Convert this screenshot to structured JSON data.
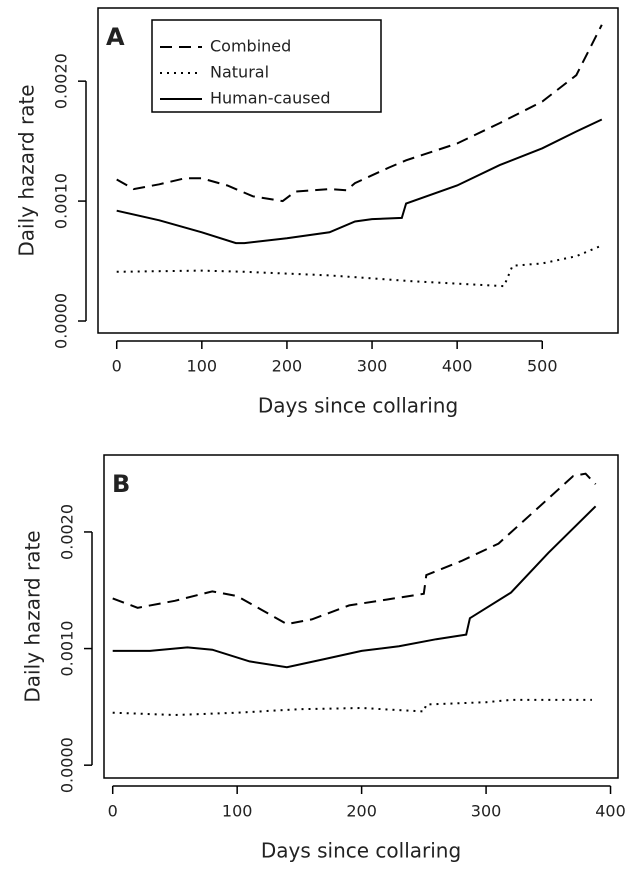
{
  "chart_data": [
    {
      "type": "line",
      "panel_label": "A",
      "x_label": "Days since collaring",
      "y_label": "Daily hazard rate",
      "xlim": [
        -22,
        589
      ],
      "ylim": [
        -0.0001,
        0.00261
      ],
      "xticks": [
        0,
        100,
        200,
        300,
        400,
        500
      ],
      "yticks": [
        {
          "value": 0,
          "label": "0.0000"
        },
        {
          "value": 0.001,
          "label": "0.0010"
        },
        {
          "value": 0.002,
          "label": "0.0020"
        }
      ],
      "legend": "top-left",
      "series": [
        {
          "name": "Combined",
          "color": "#000000",
          "style": "dashed",
          "x": [
            0,
            20,
            50,
            80,
            100,
            130,
            160,
            195,
            210,
            250,
            270,
            280,
            320,
            340,
            400,
            450,
            500,
            540,
            570
          ],
          "values": [
            0.00118,
            0.0011,
            0.00114,
            0.00119,
            0.00119,
            0.00113,
            0.00104,
            0.001,
            0.00108,
            0.0011,
            0.00109,
            0.00115,
            0.00128,
            0.00134,
            0.00148,
            0.00165,
            0.00183,
            0.00205,
            0.00247
          ]
        },
        {
          "name": "Natural",
          "color": "#000000",
          "style": "dotted",
          "x": [
            0,
            100,
            150,
            250,
            350,
            455,
            465,
            500,
            540,
            570
          ],
          "values": [
            0.00041,
            0.00042,
            0.00041,
            0.00038,
            0.00033,
            0.00029,
            0.00046,
            0.00048,
            0.00054,
            0.00063
          ]
        },
        {
          "name": "Human-caused",
          "color": "#000000",
          "style": "solid",
          "x": [
            0,
            50,
            100,
            140,
            150,
            200,
            250,
            280,
            300,
            335,
            340,
            400,
            450,
            500,
            540,
            570
          ],
          "values": [
            0.00092,
            0.00084,
            0.00074,
            0.00065,
            0.00065,
            0.00069,
            0.00074,
            0.00083,
            0.00085,
            0.00086,
            0.00098,
            0.00113,
            0.0013,
            0.00144,
            0.00158,
            0.00168
          ]
        }
      ]
    },
    {
      "type": "line",
      "panel_label": "B",
      "x_label": "Days since collaring",
      "y_label": "Daily hazard rate",
      "xlim": [
        -7,
        406
      ],
      "ylim": [
        -0.00011,
        0.00266
      ],
      "xticks": [
        0,
        100,
        200,
        300,
        400
      ],
      "yticks": [
        {
          "value": 0,
          "label": "0.0000"
        },
        {
          "value": 0.001,
          "label": "0.0010"
        },
        {
          "value": 0.002,
          "label": "0.0020"
        }
      ],
      "series": [
        {
          "color": "#000000",
          "style": "dashed",
          "x": [
            0,
            20,
            50,
            80,
            100,
            120,
            140,
            160,
            190,
            220,
            250,
            252,
            280,
            310,
            340,
            370,
            380,
            388
          ],
          "values": [
            0.00143,
            0.00135,
            0.00141,
            0.00149,
            0.00145,
            0.00133,
            0.00121,
            0.00125,
            0.00137,
            0.00142,
            0.00147,
            0.00163,
            0.00175,
            0.0019,
            0.00219,
            0.00248,
            0.0025,
            0.00241
          ]
        },
        {
          "color": "#000000",
          "style": "dotted",
          "x": [
            0,
            50,
            100,
            150,
            200,
            250,
            252,
            300,
            320,
            385
          ],
          "values": [
            0.00045,
            0.00043,
            0.00045,
            0.00048,
            0.00049,
            0.00046,
            0.00052,
            0.00054,
            0.00056,
            0.00056
          ]
        },
        {
          "color": "#000000",
          "style": "solid",
          "x": [
            0,
            30,
            60,
            80,
            110,
            140,
            170,
            200,
            230,
            260,
            284,
            287,
            320,
            350,
            388
          ],
          "values": [
            0.00098,
            0.00098,
            0.00101,
            0.00099,
            0.00089,
            0.00084,
            0.00091,
            0.00098,
            0.00102,
            0.00108,
            0.00112,
            0.00126,
            0.00148,
            0.00182,
            0.00222
          ]
        }
      ]
    }
  ]
}
